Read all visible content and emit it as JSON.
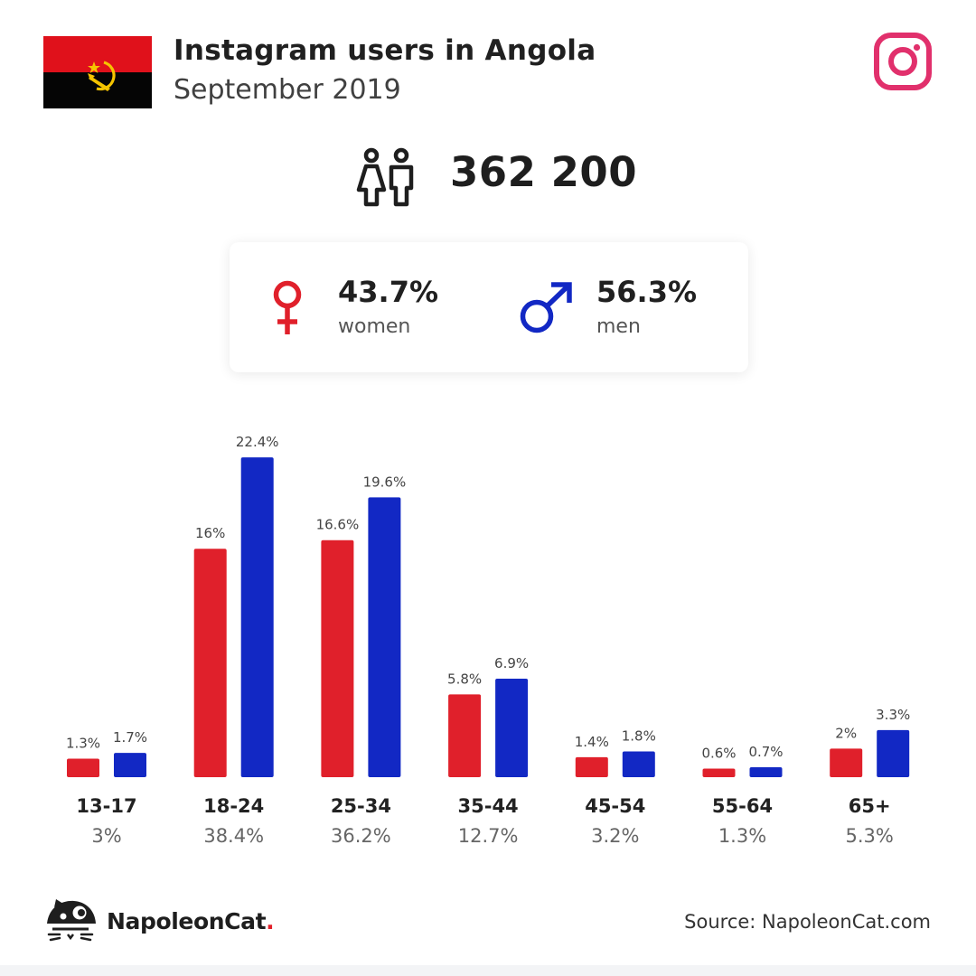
{
  "header": {
    "title": "Instagram users in Angola",
    "subtitle": "September 2019",
    "flag_icon": "angola-flag",
    "platform_icon": "instagram-icon"
  },
  "total": {
    "value": "362 200",
    "icon": "people-icon"
  },
  "gender": {
    "women": {
      "pct": "43.7%",
      "label": "women",
      "icon": "female-symbol-icon",
      "color": "#e0202b"
    },
    "men": {
      "pct": "56.3%",
      "label": "men",
      "icon": "male-symbol-icon",
      "color": "#1228c4"
    }
  },
  "chart_data": {
    "type": "bar",
    "categories": [
      "13-17",
      "18-24",
      "25-34",
      "35-44",
      "45-54",
      "55-64",
      "65+"
    ],
    "category_totals": [
      "3%",
      "38.4%",
      "36.2%",
      "12.7%",
      "3.2%",
      "1.3%",
      "5.3%"
    ],
    "series": [
      {
        "values": [
          1.3,
          16,
          16.6,
          5.8,
          1.4,
          0.6,
          2
        ],
        "labels": [
          "1.3%",
          "16%",
          "16.6%",
          "5.8%",
          "1.4%",
          "0.6%",
          "2%"
        ],
        "color": "#e0202b"
      },
      {
        "values": [
          1.7,
          22.4,
          19.6,
          6.9,
          1.8,
          0.7,
          3.3
        ],
        "labels": [
          "1.7%",
          "22.4%",
          "19.6%",
          "6.9%",
          "1.8%",
          "0.7%",
          "3.3%"
        ],
        "color": "#1228c4"
      }
    ],
    "grid": false,
    "legend": "none"
  },
  "footer": {
    "brand_name": "NapoleonCat",
    "brand_dot": ".",
    "logo_icon": "napoleoncat-logo-icon",
    "source": "Source: NapoleonCat.com"
  }
}
